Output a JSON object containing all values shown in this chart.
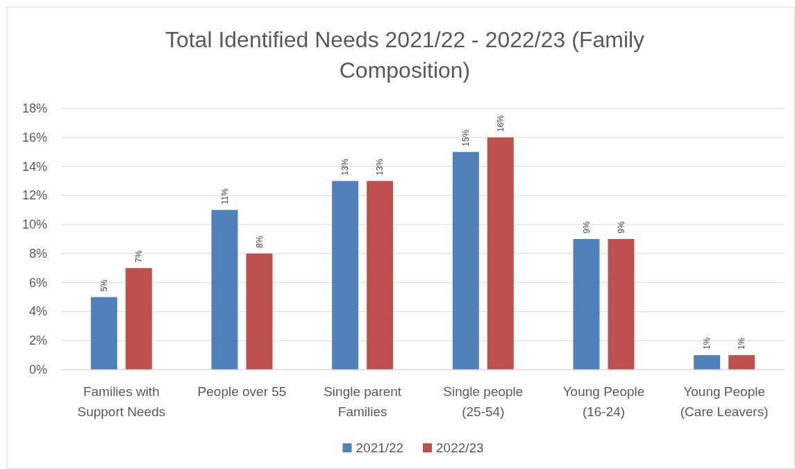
{
  "chart_data": {
    "type": "bar",
    "title": "Total Identified Needs 2021/22 - 2022/23  (Family Composition)",
    "categories": [
      "Families with Support Needs",
      "People over 55",
      "Single parent Families",
      "Single people (25-54)",
      "Young People (16-24)",
      "Young People (Care Leavers)"
    ],
    "series": [
      {
        "name": "2021/22",
        "color": "#4f81bd",
        "values": [
          5,
          11,
          13,
          15,
          9,
          1
        ],
        "value_labels": [
          "5%",
          "11%",
          "13%",
          "15%",
          "9%",
          "1%"
        ]
      },
      {
        "name": "2022/23",
        "color": "#c0504d",
        "values": [
          7,
          8,
          13,
          16,
          9,
          1
        ],
        "value_labels": [
          "7%",
          "8%",
          "13%",
          "16%",
          "9%",
          "1%"
        ]
      }
    ],
    "ylim": [
      0,
      18
    ],
    "yticks": [
      {
        "value": 0,
        "label": "0%"
      },
      {
        "value": 2,
        "label": "2%"
      },
      {
        "value": 4,
        "label": "4%"
      },
      {
        "value": 6,
        "label": "6%"
      },
      {
        "value": 8,
        "label": "8%"
      },
      {
        "value": 10,
        "label": "10%"
      },
      {
        "value": 12,
        "label": "12%"
      },
      {
        "value": 14,
        "label": "14%"
      },
      {
        "value": 16,
        "label": "16%"
      },
      {
        "value": 18,
        "label": "18%"
      }
    ],
    "grid": "y",
    "legend": "bottom"
  }
}
